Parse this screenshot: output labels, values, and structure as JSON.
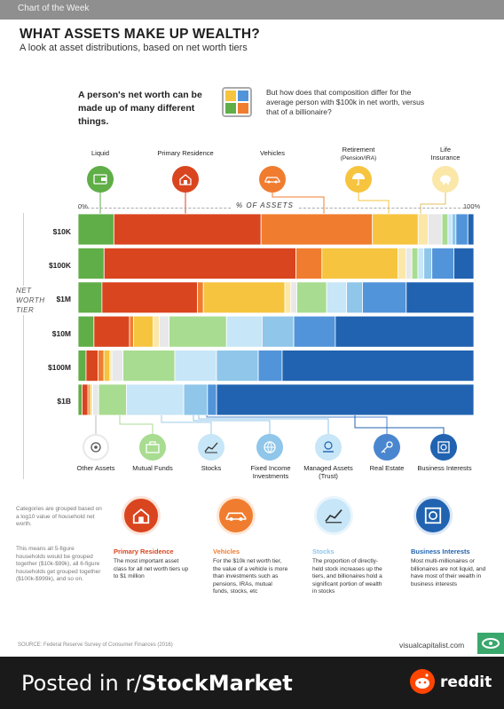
{
  "header": {
    "tag": "Chart of the Week"
  },
  "title": "WHAT ASSETS MAKE UP WEALTH?",
  "subtitle": "A look at asset distributions, based on net worth tiers",
  "intro": {
    "left": "A person's net worth can be made up of many different things.",
    "right": "But how does that composition differ for the average person with $100k in net worth, versus that of a billionaire?"
  },
  "top_categories": [
    {
      "label": "Liquid",
      "icon": "wallet-icon",
      "color": "#5fae47"
    },
    {
      "label": "Primary Residence",
      "icon": "house-icon",
      "color": "#d9451f"
    },
    {
      "label": "Vehicles",
      "icon": "car-icon",
      "color": "#f07d2f"
    },
    {
      "label": "Retirement",
      "sub": "(Pension/IRA)",
      "icon": "umbrella-icon",
      "color": "#f6c43f"
    },
    {
      "label": "Life",
      "sub": "Insurance",
      "icon": "piggy-bank-icon",
      "color": "#fbe7a8"
    }
  ],
  "axis": {
    "left": "0%",
    "right": "100%",
    "title": "% OF ASSETS"
  },
  "tier_label": "NET WORTH TIER",
  "chart_data": {
    "type": "bar",
    "stacked": true,
    "orientation": "horizontal",
    "xlim": [
      0,
      100
    ],
    "xlabel": "% OF ASSETS",
    "ylabel": "NET WORTH TIER",
    "categories": [
      "$10K",
      "$100K",
      "$1M",
      "$10M",
      "$100M",
      "$1B"
    ],
    "series": [
      {
        "name": "Liquid",
        "color": "#5fae47",
        "values": [
          9,
          6.5,
          6,
          4,
          2,
          1
        ]
      },
      {
        "name": "Primary Residence",
        "color": "#d9451f",
        "values": [
          37,
          48,
          24,
          9,
          3,
          1.5
        ]
      },
      {
        "name": "Vehicles",
        "color": "#f07d2f",
        "values": [
          28,
          6.5,
          1.5,
          1,
          1.5,
          0.5
        ]
      },
      {
        "name": "Retirement",
        "color": "#f6c43f",
        "values": [
          11.5,
          19,
          20.5,
          5,
          1.5,
          0.5
        ]
      },
      {
        "name": "Life Insurance",
        "color": "#fbe7a8",
        "values": [
          2.5,
          2,
          1.5,
          1.5,
          0.5,
          0.2
        ]
      },
      {
        "name": "Other Assets",
        "color": "#e8e8e8",
        "values": [
          3.5,
          1.5,
          1.5,
          2.5,
          2.8,
          1.5
        ]
      },
      {
        "name": "Mutual Funds",
        "color": "#a8dc90",
        "values": [
          1.5,
          1.5,
          7.5,
          14.5,
          13,
          7
        ]
      },
      {
        "name": "Stocks",
        "color": "#c7e6f7",
        "values": [
          1,
          1.5,
          5,
          9,
          10.5,
          14.5
        ]
      },
      {
        "name": "Fixed Income Investments",
        "color": "#8fc6ea",
        "values": [
          1,
          2,
          4,
          8,
          10.5,
          6
        ]
      },
      {
        "name": "Real Estate",
        "color": "#5294d9",
        "values": [
          3,
          5.5,
          11,
          10.5,
          6,
          2.3
        ]
      },
      {
        "name": "Business Interests",
        "color": "#2163b0",
        "values": [
          1.5,
          5,
          17,
          35,
          48.2,
          65
        ]
      }
    ]
  },
  "bottom_categories": [
    {
      "label": "Other Assets",
      "icon": "gears-icon",
      "color": "#e8e8e8"
    },
    {
      "label": "Mutual Funds",
      "icon": "briefcase-icon",
      "color": "#a8dc90"
    },
    {
      "label": "Stocks",
      "icon": "stock-chart-icon",
      "color": "#c7e6f7"
    },
    {
      "label": "Fixed Income Investments",
      "icon": "globe-icon",
      "color": "#8fc6ea"
    },
    {
      "label": "Managed Assets (Trust)",
      "icon": "money-hand-icon",
      "color": "#c7e6f7"
    },
    {
      "label": "Real Estate",
      "icon": "key-icon",
      "color": "#4a86cf"
    },
    {
      "label": "Business Interests",
      "icon": "safe-icon",
      "color": "#2163b0"
    }
  ],
  "footnotes": {
    "one": "Categories are grouped based on a log10 value of household net worth.",
    "two": "This means all 5-figure households would be grouped together ($10k-$99k), all 6-figure households get grouped together ($100k-$999k), and so on."
  },
  "cards": [
    {
      "title": "Primary Residence",
      "color": "#d9451f",
      "icon": "house-icon",
      "text": "The most important asset class for all net worth tiers up to $1 million"
    },
    {
      "title": "Vehicles",
      "color": "#f07d2f",
      "icon": "car-icon",
      "text": "For the $10k net worth tier, the value of a vehicle is more than investments such as pensions, IRAs, mutual funds, stocks, etc"
    },
    {
      "title": "Stocks",
      "color": "#8fc6ea",
      "icon": "stock-chart-icon",
      "text": "The proportion of directly-held stock increases up the tiers, and billionaires hold a significant portion of wealth in stocks"
    },
    {
      "title": "Business Interests",
      "color": "#2163b0",
      "icon": "safe-icon",
      "text": "Most multi-millionaires or billionaires are not liquid, and have most of their wealth in business interests"
    }
  ],
  "source": "SOURCE: Federal Reserve Survey of Consumer Finances (2016)",
  "brand": "visualcapitalist.com",
  "banner": {
    "prefix": "Posted in r/",
    "sub": "StockMarket",
    "logo_word": "reddit"
  }
}
